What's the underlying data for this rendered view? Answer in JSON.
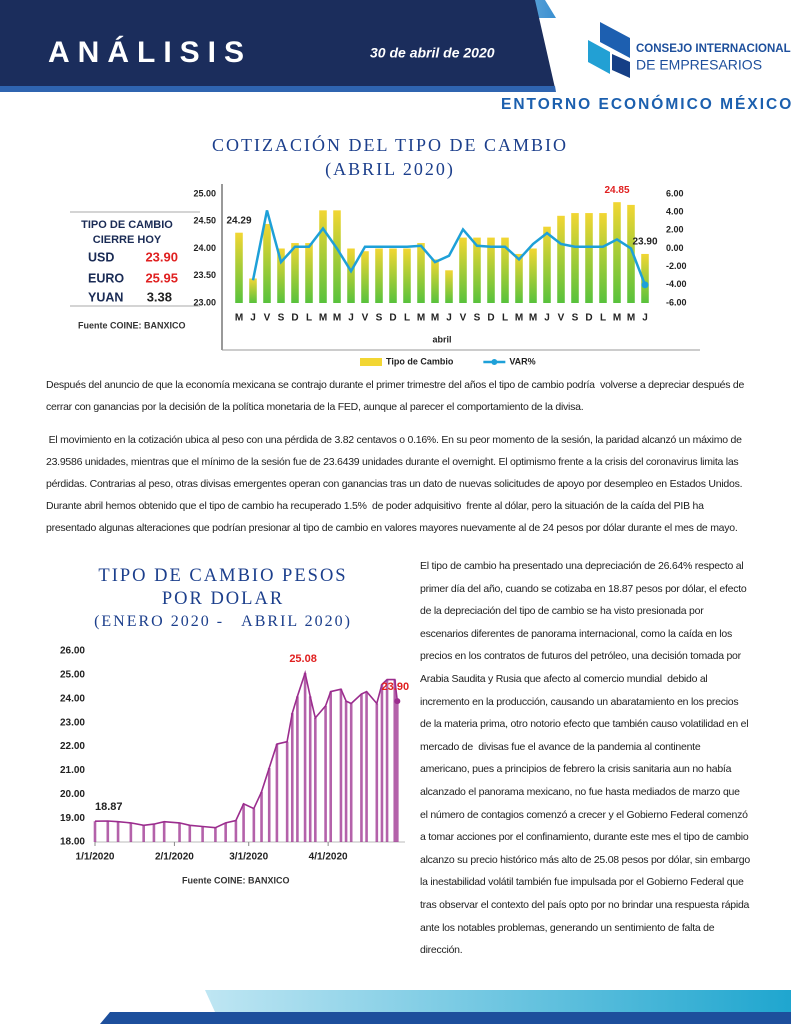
{
  "header": {
    "title": "ANÁLISIS",
    "date": "30 de abril de 2020",
    "logo_line1": "CONSEJO INTERNACIONAL",
    "logo_line2": "DE EMPRESARIOS",
    "section": "ENTORNO ECONÓMICO MÉXICO"
  },
  "rate_table": {
    "title": [
      "TIPO DE CAMBIO",
      "CIERRE HOY"
    ],
    "rows": [
      [
        "USD",
        "23.90"
      ],
      [
        "EURO",
        "25.95"
      ],
      [
        "YUAN",
        "3.38"
      ]
    ]
  },
  "chart_data": [
    {
      "type": "bar",
      "title": "COTIZACIÓN DEL TIPO DE CAMBIO",
      "subtitle": "(ABRIL 2020)",
      "x_label": "abril",
      "source": "Fuente COINE: BANXICO",
      "categories": [
        "M",
        "J",
        "V",
        "S",
        "D",
        "L",
        "M",
        "M",
        "J",
        "V",
        "S",
        "D",
        "L",
        "M",
        "M",
        "J",
        "V",
        "S",
        "D",
        "L",
        "M",
        "M",
        "J",
        "V",
        "S",
        "D",
        "L",
        "M",
        "M",
        "J"
      ],
      "ylim": [
        23,
        25
      ],
      "yticks": [
        {
          "value": 23,
          "label": "23.00"
        },
        {
          "value": 23.5,
          "label": "23.50"
        },
        {
          "value": 24,
          "label": "24.00"
        },
        {
          "value": 24.5,
          "label": "24.50"
        },
        {
          "value": 25,
          "label": "25.00"
        }
      ],
      "y2lim": [
        -6,
        6
      ],
      "y2ticks": [
        {
          "value": -6,
          "label": "-6.00"
        },
        {
          "value": -4,
          "label": "-4.00"
        },
        {
          "value": -2,
          "label": "-2.00"
        },
        {
          "value": 0,
          "label": "0.00"
        },
        {
          "value": 2,
          "label": "2.00"
        },
        {
          "value": 4,
          "label": "4.00"
        },
        {
          "value": 6,
          "label": "6.00"
        }
      ],
      "series": [
        {
          "name": "Tipo de Cambio",
          "color": "#f2d633",
          "values": [
            24.29,
            23.45,
            24.45,
            24.0,
            24.1,
            24.1,
            24.7,
            24.7,
            24.0,
            23.95,
            24.0,
            24.0,
            24.0,
            24.1,
            23.8,
            23.6,
            24.2,
            24.2,
            24.2,
            24.2,
            23.9,
            24.0,
            24.4,
            24.6,
            24.65,
            24.65,
            24.65,
            24.85,
            24.8,
            23.9
          ],
          "value_labels": [
            "24.29",
            null,
            null,
            null,
            null,
            null,
            null,
            null,
            null,
            null,
            null,
            null,
            null,
            null,
            null,
            null,
            null,
            null,
            null,
            null,
            null,
            null,
            null,
            null,
            null,
            null,
            null,
            "24.85",
            null,
            "23.90"
          ]
        },
        {
          "name": "VAR%",
          "color": "#1ea0d8",
          "axis": "y2",
          "values": [
            null,
            -3.5,
            4.2,
            -1.5,
            0.2,
            0.2,
            2.2,
            0,
            -2.5,
            0.2,
            0.2,
            0.2,
            0.2,
            0.3,
            -1.5,
            -0.8,
            2.1,
            0.3,
            0.2,
            0.2,
            -1.2,
            0.5,
            1.7,
            0.5,
            0.2,
            0.2,
            0.2,
            1.0,
            0,
            -4.0
          ]
        }
      ]
    },
    {
      "type": "line",
      "title": "TIPO DE CAMBIO PESOS POR DOLAR",
      "subtitle": "(ENERO 2020 -   ABRIL 2020)",
      "source": "Fuente COINE: BANXICO",
      "x": [
        "1/1/2020",
        "1/6/2020",
        "1/10/2020",
        "1/15/2020",
        "1/20/2020",
        "1/24/2020",
        "1/28/2020",
        "2/3/2020",
        "2/7/2020",
        "2/12/2020",
        "2/17/2020",
        "2/21/2020",
        "2/25/2020",
        "2/28/2020",
        "3/3/2020",
        "3/6/2020",
        "3/9/2020",
        "3/12/2020",
        "3/16/2020",
        "3/18/2020",
        "3/20/2020",
        "3/23/2020",
        "3/25/2020",
        "3/27/2020",
        "3/31/2020",
        "4/2/2020",
        "4/6/2020",
        "4/8/2020",
        "4/10/2020",
        "4/14/2020",
        "4/16/2020",
        "4/20/2020",
        "4/22/2020",
        "4/24/2020",
        "4/27/2020",
        "4/28/2020"
      ],
      "xlim": [
        "1/1/2020",
        "5/1/2020"
      ],
      "xticks": [
        "1/1/2020",
        "2/1/2020",
        "3/1/2020",
        "4/1/2020"
      ],
      "ylim": [
        18,
        26
      ],
      "yticks": [
        {
          "value": 18,
          "label": "18.00"
        },
        {
          "value": 19,
          "label": "19.00"
        },
        {
          "value": 20,
          "label": "20.00"
        },
        {
          "value": 21,
          "label": "21.00"
        },
        {
          "value": 22,
          "label": "22.00"
        },
        {
          "value": 23,
          "label": "23.00"
        },
        {
          "value": 24,
          "label": "24.00"
        },
        {
          "value": 25,
          "label": "25.00"
        },
        {
          "value": 26,
          "label": "26.00"
        }
      ],
      "color": "#9b2d8e",
      "values": [
        18.87,
        18.88,
        18.85,
        18.8,
        18.7,
        18.75,
        18.85,
        18.8,
        18.7,
        18.65,
        18.6,
        18.8,
        18.9,
        19.6,
        19.4,
        20.1,
        21.1,
        22.1,
        22.2,
        23.4,
        24.1,
        25.08,
        24.1,
        23.2,
        23.7,
        24.3,
        24.4,
        23.9,
        23.8,
        24.2,
        24.3,
        23.8,
        24.6,
        24.8,
        24.8,
        23.9
      ],
      "value_labels": [
        "18.87",
        null,
        null,
        null,
        null,
        null,
        null,
        null,
        null,
        null,
        null,
        null,
        null,
        null,
        null,
        null,
        null,
        null,
        null,
        null,
        null,
        "25.08",
        null,
        null,
        null,
        null,
        null,
        null,
        null,
        null,
        null,
        null,
        null,
        null,
        null,
        "23.90"
      ]
    }
  ],
  "paragraphs": [
    "Después del anuncio de que la economía mexicana se contrajo durante el primer trimestre del años el tipo de cambio podría  volverse a depreciar después de cerrar con ganancias por la decisión de la política monetaria de la FED, aunque al parecer el comportamiento de la divisa.",
    " El movimiento en la cotización ubica al peso con una pérdida de 3.82 centavos o 0.16%. En su peor momento de la sesión, la paridad alcanzó un máximo de 23.9586 unidades, mientras que el mínimo de la sesión fue de 23.6439 unidades durante el overnight. El optimismo frente a la crisis del coronavirus limita las pérdidas. Contrarias al peso, otras divisas emergentes operan con ganancias tras un dato de nuevas solicitudes de apoyo por desempleo en Estados Unidos. Durante abril hemos obtenido que el tipo de cambio ha recuperado 1.5%  de poder adquisitivo  frente al dólar, pero la situación de la caída del PIB ha presentado algunas alteraciones que podrían presionar al tipo de cambio en valores mayores nuevamente al de 24 pesos por dólar durante el mes de mayo.",
    "El tipo de cambio ha presentado una depreciación de 26.64% respecto al primer día del año, cuando se cotizaba en 18.87 pesos por dólar, el efecto de la depreciación del tipo de cambio se ha visto presionada por escenarios diferentes de panorama internacional, como la caída en los precios en los contratos de futuros del petróleo, una decisión tomada por Arabia Saudita y Rusia que afecto al comercio mundial  debido al incremento en la producción, causando un abaratamiento en los precios de la materia prima, otro notorio efecto que también causo volatilidad en el mercado de  divisas fue el avance de la pandemia al continente americano, pues a principios de febrero la crisis sanitaria aun no había alcanzado el panorama mexicano, no fue hasta mediados de marzo que el número de contagios comenzó a crecer y el Gobierno Federal comenzó a tomar acciones por el confinamiento, durante este mes el tipo de cambio alcanzo su precio histórico más alto de 25.08 pesos por dólar, sin embargo la inestabilidad volátil también fue impulsada por el Gobierno Federal que tras observar el contexto del país opto por no brindar una respuesta rápida ante los notables problemas, generando un sentimiento de falta de dirección."
  ]
}
